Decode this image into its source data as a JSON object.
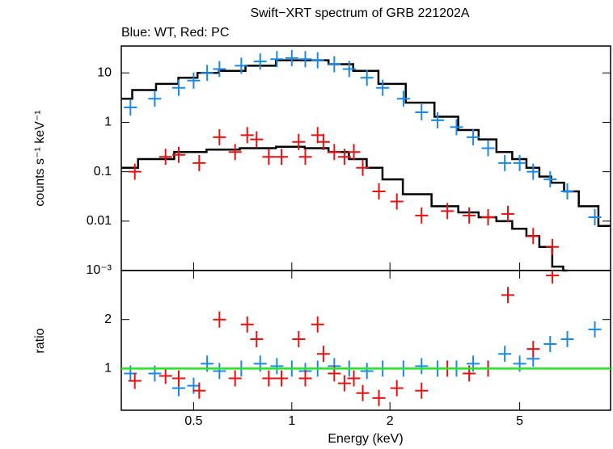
{
  "chart_data": [
    {
      "type": "scatter",
      "title": "Swift−XRT spectrum of GRB 221202A",
      "subtitle": "Blue: WT, Red: PC",
      "y_label": "counts s⁻¹ keV⁻¹",
      "log_x": true,
      "log_y": true,
      "xlim": [
        0.3,
        9.5
      ],
      "ylim": [
        0.001,
        35
      ],
      "yticks": [
        {
          "value": 0.001,
          "label": "10⁻³"
        },
        0.01,
        0.1,
        1,
        10
      ],
      "series": [
        {
          "name": "WT",
          "color": "#1a88e8",
          "x": [
            0.32,
            0.38,
            0.45,
            0.5,
            0.55,
            0.6,
            0.7,
            0.8,
            0.9,
            1.0,
            1.1,
            1.2,
            1.35,
            1.5,
            1.7,
            1.9,
            2.2,
            2.5,
            2.8,
            3.2,
            3.6,
            4.0,
            4.5,
            5.0,
            5.5,
            6.2,
            7.0,
            8.5
          ],
          "values": [
            2,
            3,
            5,
            7,
            10,
            12,
            14,
            17,
            19,
            20,
            19,
            18,
            15,
            12,
            8,
            5,
            3,
            1.6,
            1.1,
            0.8,
            0.5,
            0.3,
            0.15,
            0.15,
            0.1,
            0.07,
            0.04,
            0.012
          ]
        },
        {
          "name": "PC",
          "color": "#e81010",
          "x": [
            0.33,
            0.41,
            0.45,
            0.52,
            0.6,
            0.67,
            0.73,
            0.78,
            0.85,
            0.93,
            1.05,
            1.1,
            1.2,
            1.25,
            1.35,
            1.45,
            1.55,
            1.65,
            1.85,
            2.1,
            2.5,
            3.0,
            3.5,
            4.0,
            4.6,
            5.5,
            6.3
          ],
          "values": [
            0.1,
            0.2,
            0.22,
            0.15,
            0.5,
            0.25,
            0.55,
            0.45,
            0.2,
            0.2,
            0.4,
            0.2,
            0.55,
            0.4,
            0.25,
            0.2,
            0.25,
            0.12,
            0.04,
            0.025,
            0.013,
            0.016,
            0.013,
            0.012,
            0.014,
            0.005,
            0.003
          ]
        }
      ],
      "models": [
        {
          "color": "#000000",
          "x": [
            0.3,
            0.35,
            0.42,
            0.48,
            0.55,
            0.65,
            0.8,
            1.0,
            1.2,
            1.4,
            1.7,
            2.0,
            2.5,
            3.0,
            3.5,
            4.0,
            4.5,
            5.0,
            5.5,
            6.0,
            6.5,
            7.2,
            8.0,
            9.5
          ],
          "values": [
            3,
            4.5,
            6,
            8,
            10,
            11,
            14,
            18,
            18,
            15,
            11,
            6,
            2.5,
            1.3,
            0.7,
            0.45,
            0.25,
            0.18,
            0.12,
            0.08,
            0.06,
            0.04,
            0.02,
            0.008
          ]
        },
        {
          "color": "#000000",
          "x": [
            0.3,
            0.38,
            0.5,
            0.6,
            0.8,
            1.0,
            1.2,
            1.4,
            1.6,
            1.8,
            2.0,
            2.4,
            3.0,
            3.5,
            4.0,
            4.5,
            5.0,
            5.5,
            6.0,
            6.6,
            7.0
          ],
          "values": [
            0.12,
            0.18,
            0.25,
            0.28,
            0.3,
            0.32,
            0.3,
            0.25,
            0.18,
            0.12,
            0.07,
            0.035,
            0.02,
            0.015,
            0.012,
            0.01,
            0.007,
            0.005,
            0.003,
            0.0012,
            0.001
          ]
        }
      ]
    },
    {
      "type": "scatter",
      "x_label": "Energy (keV)",
      "y_label": "ratio",
      "log_x": true,
      "xlim": [
        0.3,
        9.5
      ],
      "ylim": [
        0.15,
        3
      ],
      "yticks": [
        1,
        2
      ],
      "xticks": [
        0.5,
        1,
        2,
        5
      ],
      "reference_line": 1,
      "reference_color": "#22e622",
      "series": [
        {
          "name": "WT",
          "color": "#1a88e8",
          "x": [
            0.32,
            0.38,
            0.45,
            0.5,
            0.55,
            0.6,
            0.7,
            0.8,
            0.9,
            1.0,
            1.1,
            1.2,
            1.35,
            1.5,
            1.7,
            1.9,
            2.2,
            2.5,
            2.8,
            3.2,
            3.6,
            4.0,
            4.5,
            5.0,
            5.5,
            6.2,
            7.0,
            8.5
          ],
          "values": [
            0.9,
            0.9,
            0.6,
            0.65,
            1.1,
            0.95,
            1.0,
            1.1,
            1.05,
            1.0,
            0.95,
            1.0,
            1.05,
            1.0,
            0.95,
            1.0,
            1.0,
            1.05,
            1.0,
            1.0,
            1.1,
            1.0,
            1.3,
            1.1,
            1.2,
            1.5,
            1.6,
            1.8
          ]
        },
        {
          "name": "PC",
          "color": "#e81010",
          "x": [
            0.33,
            0.41,
            0.45,
            0.52,
            0.6,
            0.67,
            0.73,
            0.78,
            0.85,
            0.93,
            1.05,
            1.1,
            1.2,
            1.25,
            1.35,
            1.45,
            1.55,
            1.65,
            1.85,
            2.1,
            2.5,
            3.0,
            3.5,
            4.0,
            4.6,
            5.5,
            6.3
          ],
          "values": [
            0.75,
            0.85,
            0.8,
            0.55,
            2.0,
            0.8,
            1.9,
            1.6,
            0.8,
            0.8,
            1.6,
            0.8,
            1.9,
            1.3,
            0.9,
            0.7,
            0.8,
            0.5,
            0.4,
            0.6,
            0.55,
            1.0,
            0.9,
            1.0,
            2.5,
            1.4,
            2.9
          ]
        }
      ]
    }
  ]
}
